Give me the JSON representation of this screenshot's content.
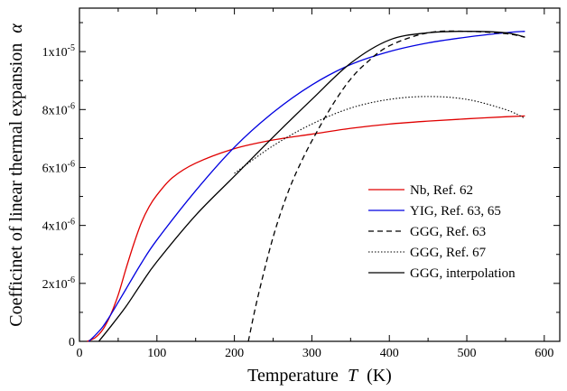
{
  "chart_data": {
    "type": "line",
    "title": "",
    "xlabel": "Temperature",
    "xlabel_var": "T",
    "xlabel_unit": "(K)",
    "ylabel": "Coefficinet of linear thermal expansion",
    "ylabel_var": "α",
    "xlim": [
      0,
      620
    ],
    "ylim": [
      0,
      1.15e-05
    ],
    "x_ticks": [
      0,
      100,
      200,
      300,
      400,
      500,
      600
    ],
    "y_ticks": [
      {
        "value": 0,
        "label": "0",
        "exp": ""
      },
      {
        "value": 2e-06,
        "label": "2x10",
        "exp": "-6"
      },
      {
        "value": 4e-06,
        "label": "4x10",
        "exp": "-6"
      },
      {
        "value": 6e-06,
        "label": "6x10",
        "exp": "-6"
      },
      {
        "value": 8e-06,
        "label": "8x10",
        "exp": "-6"
      },
      {
        "value": 1e-05,
        "label": "1x10",
        "exp": "-5"
      }
    ],
    "grid": false,
    "legend_position": "center-right",
    "series": [
      {
        "name": "Nb, Ref. 62",
        "color": "#e00000",
        "dash": "solid",
        "x": [
          10,
          20,
          30,
          40,
          50,
          60,
          70,
          80,
          90,
          100,
          120,
          150,
          200,
          250,
          300,
          350,
          400,
          450,
          500,
          550,
          575
        ],
        "y": [
          0,
          1.2e-07,
          4e-07,
          9e-07,
          1.6e-06,
          2.5e-06,
          3.35e-06,
          4.1e-06,
          4.65e-06,
          5.05e-06,
          5.65e-06,
          6.15e-06,
          6.65e-06,
          6.95e-06,
          7.15e-06,
          7.35e-06,
          7.5e-06,
          7.6e-06,
          7.68e-06,
          7.75e-06,
          7.78e-06
        ]
      },
      {
        "name": "YIG, Ref. 63, 65",
        "color": "#0000e0",
        "dash": "solid",
        "x": [
          12,
          20,
          30,
          40,
          50,
          60,
          80,
          100,
          150,
          200,
          250,
          300,
          350,
          400,
          450,
          500,
          550,
          575
        ],
        "y": [
          0,
          2e-07,
          5e-07,
          9e-07,
          1.35e-06,
          1.8e-06,
          2.7e-06,
          3.5e-06,
          5.2e-06,
          6.7e-06,
          7.9e-06,
          8.85e-06,
          9.55e-06,
          1e-05,
          1.03e-05,
          1.05e-05,
          1.065e-05,
          1.07e-05
        ]
      },
      {
        "name": "GGG, Ref. 63",
        "color": "#000000",
        "dash": "dashed",
        "x": [
          218,
          230,
          250,
          270,
          290,
          310,
          330,
          350,
          370,
          400,
          450,
          500,
          550,
          575
        ],
        "y": [
          0,
          1.5e-06,
          3.6e-06,
          5.2e-06,
          6.4e-06,
          7.4e-06,
          8.3e-06,
          9.05e-06,
          9.6e-06,
          1.02e-05,
          1.065e-05,
          1.07e-05,
          1.062e-05,
          1.05e-05
        ]
      },
      {
        "name": "GGG, Ref. 67",
        "color": "#000000",
        "dash": "dotted",
        "x": [
          200,
          250,
          300,
          350,
          400,
          450,
          500,
          550,
          575
        ],
        "y": [
          5.8e-06,
          6.75e-06,
          7.5e-06,
          8.05e-06,
          8.35e-06,
          8.45e-06,
          8.35e-06,
          8e-06,
          7.7e-06
        ]
      },
      {
        "name": "GGG, interpolation",
        "color": "#000000",
        "dash": "solid",
        "x": [
          25,
          40,
          60,
          80,
          100,
          150,
          200,
          250,
          300,
          350,
          400,
          450,
          500,
          550,
          575
        ],
        "y": [
          0,
          5e-07,
          1.2e-06,
          2e-06,
          2.75e-06,
          4.35e-06,
          5.7e-06,
          7.05e-06,
          8.35e-06,
          9.6e-06,
          1.04e-05,
          1.065e-05,
          1.07e-05,
          1.065e-05,
          1.05e-05
        ]
      }
    ]
  }
}
